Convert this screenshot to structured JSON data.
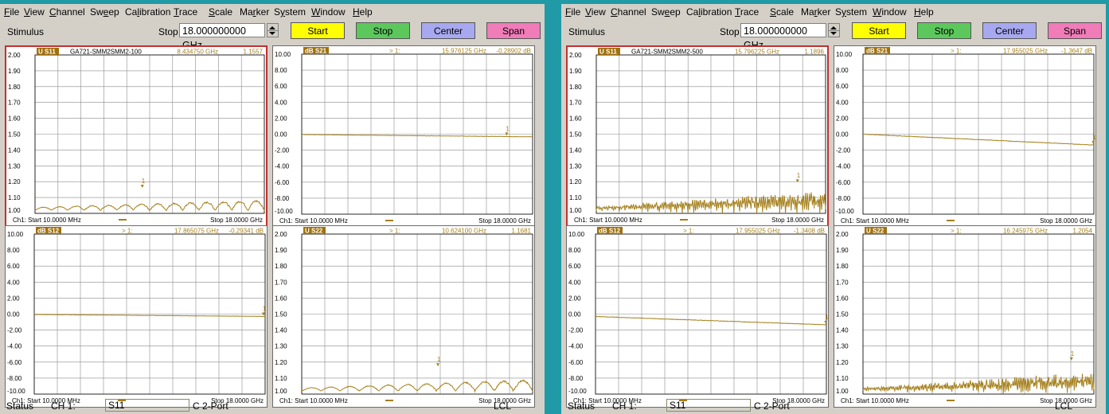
{
  "menu": [
    "File",
    "View",
    "Channel",
    "Sweep",
    "Calibration",
    "Trace",
    "Scale",
    "Marker",
    "System",
    "Window",
    "Help"
  ],
  "toolbar": {
    "stimulus_label": "Stimulus",
    "stop_label": "Stop",
    "stop_value": "18.000000000 GHz",
    "buttons": [
      {
        "label": "Start",
        "color": "#ffff00"
      },
      {
        "label": "Stop",
        "color": "#5cc85c"
      },
      {
        "label": "Center",
        "color": "#a8a8f0"
      },
      {
        "label": "Span",
        "color": "#f07cb8"
      }
    ]
  },
  "colors": {
    "trace": "#a5801c",
    "label_bg": "#a0700a",
    "active_border": "#c23030",
    "grid": "#8a8a8a"
  },
  "status": {
    "label": "Status",
    "channel": "CH 1:",
    "field_value": "S11",
    "port_info": "C  2-Port",
    "lcl": "LCL"
  },
  "windows": [
    {
      "plots": [
        {
          "badge": "U S11",
          "badge_type": "lin",
          "active": true,
          "title": "GA721-SMM2SMM2-100",
          "marker_prefix": "",
          "marker_freq": "8.434750 GHz",
          "marker_val": "1.1557",
          "y_labels": [
            "2.00",
            "1.90",
            "1.80",
            "1.70",
            "1.60",
            "1.50",
            "1.40",
            "1.30",
            "1.20",
            "1.10",
            "1.00"
          ],
          "start_label": "Ch1: Start  10.0000 MHz",
          "stop_label": "Stop  18.0000 GHz",
          "chart_data": {
            "type": "line",
            "ylim": [
              1.0,
              2.0
            ],
            "xlim": [
              0.01,
              18.0
            ],
            "base": 1.02,
            "amp": 0.07,
            "freq": 14,
            "noise": 0.01,
            "growth": 0.6,
            "marker_x": 8.43,
            "marker_y": 1.156
          }
        },
        {
          "badge": "dB S21",
          "badge_type": "db",
          "active": false,
          "title": "",
          "marker_prefix": "> 1:",
          "marker_freq": "15.976125 GHz",
          "marker_val": "-0.28902 dB",
          "y_labels": [
            "10.00",
            "8.00",
            "6.00",
            "4.00",
            "2.00",
            "0.00",
            "-2.00",
            "-4.00",
            "-6.00",
            "-8.00",
            "-10.00"
          ],
          "start_label": "Ch1: Start  10.0000 MHz",
          "stop_label": "Stop  18.0000 GHz",
          "chart_data": {
            "type": "line",
            "ylim": [
              -10,
              10
            ],
            "xlim": [
              0.01,
              18.0
            ],
            "y0": -0.05,
            "y1": -0.33,
            "noise": 0.04,
            "marker_x": 15.98,
            "marker_y": -0.289
          }
        },
        {
          "badge": "dB S12",
          "badge_type": "db",
          "active": false,
          "title": "",
          "marker_prefix": "> 1:",
          "marker_freq": "17.865075 GHz",
          "marker_val": "-0.29341 dB",
          "y_labels": [
            "10.00",
            "8.00",
            "6.00",
            "4.00",
            "2.00",
            "0.00",
            "-2.00",
            "-4.00",
            "-6.00",
            "-8.00",
            "-10.00"
          ],
          "start_label": "Ch1: Start  10.0000 MHz",
          "stop_label": "Stop  18.0000 GHz",
          "chart_data": {
            "type": "line",
            "ylim": [
              -10,
              10
            ],
            "xlim": [
              0.01,
              18.0
            ],
            "y0": -0.05,
            "y1": -0.29,
            "noise": 0.04,
            "marker_x": 17.87,
            "marker_y": -0.293
          }
        },
        {
          "badge": "U S22",
          "badge_type": "lin",
          "active": false,
          "title": "",
          "marker_prefix": "> 1:",
          "marker_freq": "10.624100 GHz",
          "marker_val": "1.1681",
          "y_labels": [
            "2.00",
            "1.90",
            "1.80",
            "1.70",
            "1.60",
            "1.50",
            "1.40",
            "1.30",
            "1.20",
            "1.10",
            "1.00"
          ],
          "start_label": "Ch1: Start  10.0000 MHz",
          "stop_label": "Stop  18.0000 GHz",
          "chart_data": {
            "type": "line",
            "ylim": [
              1.0,
              2.0
            ],
            "xlim": [
              0.01,
              18.0
            ],
            "base": 1.02,
            "amp": 0.07,
            "freq": 12,
            "noise": 0.008,
            "growth": 0.7,
            "marker_x": 10.62,
            "marker_y": 1.168
          }
        }
      ]
    },
    {
      "plots": [
        {
          "badge": "U S11",
          "badge_type": "lin",
          "active": true,
          "title": "GA721-SMM2SMM2-500",
          "marker_prefix": "",
          "marker_freq": "15.796225 GHz",
          "marker_val": "1.1896",
          "y_labels": [
            "2.00",
            "1.90",
            "1.80",
            "1.70",
            "1.60",
            "1.50",
            "1.40",
            "1.30",
            "1.20",
            "1.10",
            "1.00"
          ],
          "start_label": "Ch1: Start  10.0000 MHz",
          "stop_label": "Stop  18.0000 GHz",
          "chart_data": {
            "type": "line",
            "ylim": [
              1.0,
              2.0
            ],
            "xlim": [
              0.01,
              18.0
            ],
            "base": 1.02,
            "amp": 0.08,
            "freq": 120,
            "noise": 0.05,
            "growth": 0.9,
            "marker_x": 15.8,
            "marker_y": 1.19
          }
        },
        {
          "badge": "dB S21",
          "badge_type": "db",
          "active": false,
          "title": "",
          "marker_prefix": "> 1:",
          "marker_freq": "17.955025 GHz",
          "marker_val": "-1.3647 dB",
          "y_labels": [
            "10.00",
            "8.00",
            "6.00",
            "4.00",
            "2.00",
            "0.00",
            "-2.00",
            "-4.00",
            "-6.00",
            "-8.00",
            "-10.00"
          ],
          "start_label": "Ch1: Start  10.0000 MHz",
          "stop_label": "Stop  18.0000 GHz",
          "chart_data": {
            "type": "line",
            "ylim": [
              -10,
              10
            ],
            "xlim": [
              0.01,
              18.0
            ],
            "y0": 0.0,
            "y1": -1.36,
            "noise": 0.06,
            "marker_x": 17.96,
            "marker_y": -1.365
          }
        },
        {
          "badge": "dB S12",
          "badge_type": "db",
          "active": false,
          "title": "",
          "marker_prefix": "> 1:",
          "marker_freq": "17.955025 GHz",
          "marker_val": "-1.3408 dB",
          "y_labels": [
            "10.00",
            "8.00",
            "6.00",
            "4.00",
            "2.00",
            "0.00",
            "-2.00",
            "-4.00",
            "-6.00",
            "-8.00",
            "-10.00"
          ],
          "start_label": "Ch1: Start  10.0000 MHz",
          "stop_label": "Stop  18.0000 GHz",
          "chart_data": {
            "type": "line",
            "ylim": [
              -10,
              10
            ],
            "xlim": [
              0.01,
              18.0
            ],
            "y0": -0.3,
            "y1": -1.34,
            "noise": 0.06,
            "marker_x": 17.96,
            "marker_y": -1.341
          }
        },
        {
          "badge": "U S22",
          "badge_type": "lin",
          "active": false,
          "title": "",
          "marker_prefix": "> 1:",
          "marker_freq": "16.245975 GHz",
          "marker_val": "1.2054",
          "y_labels": [
            "2.00",
            "1.90",
            "1.80",
            "1.70",
            "1.60",
            "1.50",
            "1.40",
            "1.30",
            "1.20",
            "1.10",
            "1.00"
          ],
          "start_label": "Ch1: Start  10.0000 MHz",
          "stop_label": "Stop  18.0000 GHz",
          "chart_data": {
            "type": "line",
            "ylim": [
              1.0,
              2.0
            ],
            "xlim": [
              0.01,
              18.0
            ],
            "base": 1.02,
            "amp": 0.07,
            "freq": 130,
            "noise": 0.05,
            "growth": 1.0,
            "marker_x": 16.25,
            "marker_y": 1.205
          }
        }
      ]
    }
  ]
}
